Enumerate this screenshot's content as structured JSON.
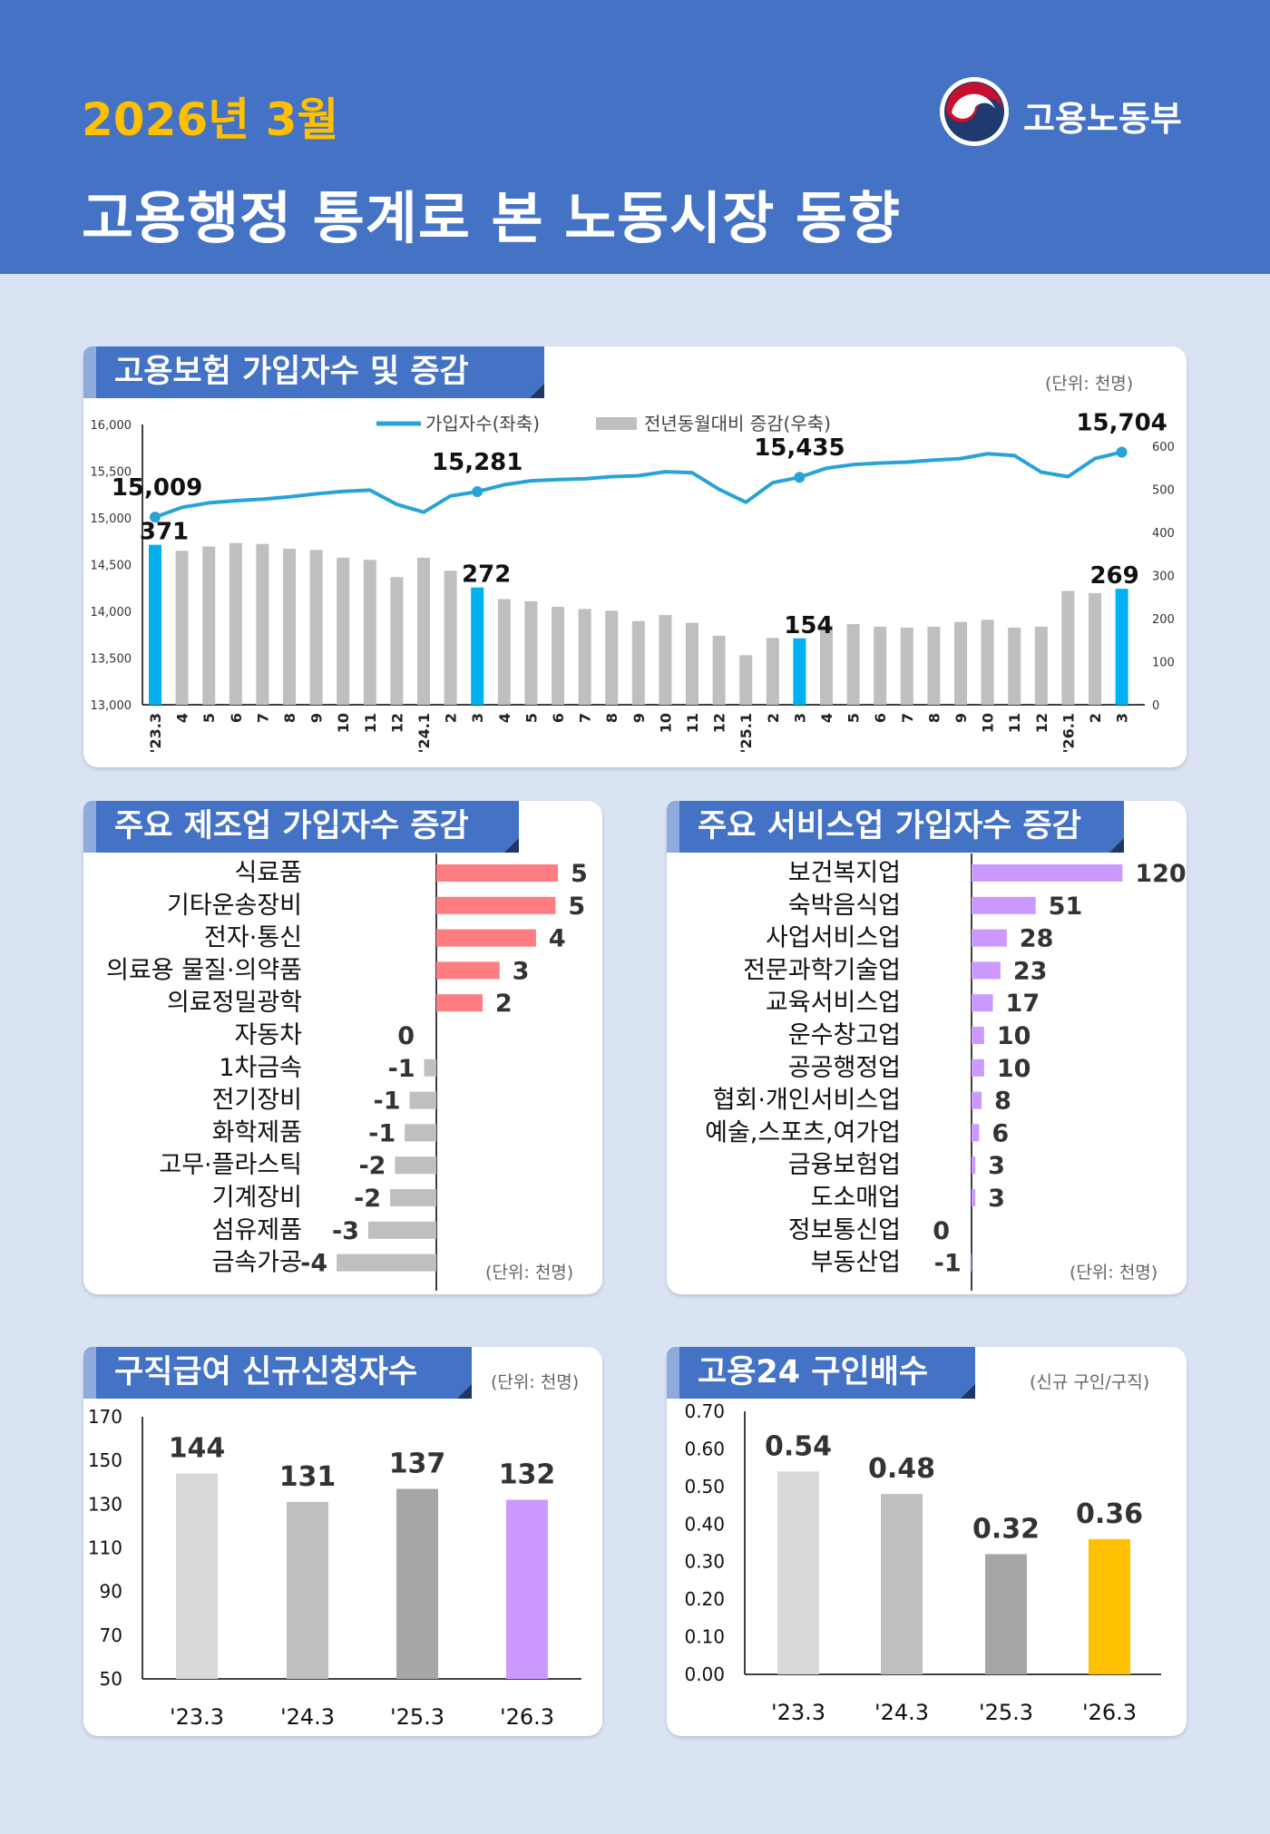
{
  "header": {
    "year": "2026년 3월",
    "title": "고용행정 통계로 본 노동시장 동향",
    "logo_text": "고용노동부"
  },
  "colors": {
    "header": "#4472c4",
    "year": "#ffc000",
    "highlight_bar": "#00b0f0",
    "gray_bar": "#bfbfbf",
    "line": "#29a3d6",
    "mfg_positive": "#ff7c80",
    "mfg_negative": "#bfbfbf",
    "service": "#cc99ff",
    "claims_2026": "#cc99ff",
    "ratio_2026": "#ffc000"
  },
  "chart_data": [
    {
      "type": "bar+line",
      "title": "고용보험 가입자수 및 증감",
      "unit": "(단위: 천명)",
      "legend": {
        "line": "가입자수(좌축)",
        "bar": "전년동월대비 증감(우축)",
        "placement": "top"
      },
      "categories": [
        "'23.3",
        "4",
        "5",
        "6",
        "7",
        "8",
        "9",
        "10",
        "11",
        "12",
        "'24.1",
        "2",
        "3",
        "4",
        "5",
        "6",
        "7",
        "8",
        "9",
        "10",
        "11",
        "12",
        "'25.1",
        "2",
        "3",
        "4",
        "5",
        "6",
        "7",
        "8",
        "9",
        "10",
        "11",
        "12",
        "'26.1",
        "2",
        "3"
      ],
      "left_axis": {
        "range": [
          13000,
          16000
        ],
        "ticks": [
          "13,000",
          "13,500",
          "14,000",
          "14,500",
          "15,000",
          "15,500",
          "16,000"
        ]
      },
      "right_axis": {
        "range": [
          0,
          650
        ],
        "ticks": [
          "0",
          "100",
          "200",
          "300",
          "400",
          "500",
          "600"
        ]
      },
      "series": [
        {
          "name": "가입자수(좌축)",
          "type": "line",
          "values": [
            15009,
            15113,
            15161,
            15184,
            15200,
            15226,
            15258,
            15284,
            15297,
            15145,
            15061,
            15235,
            15281,
            15355,
            15397,
            15410,
            15419,
            15442,
            15452,
            15494,
            15484,
            15306,
            15168,
            15377,
            15435,
            15532,
            15571,
            15587,
            15597,
            15619,
            15635,
            15687,
            15668,
            15490,
            15442,
            15635,
            15704
          ]
        },
        {
          "name": "전년동월대비 증감(우축)",
          "type": "bar",
          "values": [
            371,
            357,
            367,
            375,
            373,
            362,
            359,
            341,
            336,
            296,
            341,
            311,
            272,
            245,
            240,
            227,
            222,
            218,
            194,
            208,
            190,
            160,
            115,
            155,
            154,
            184,
            187,
            181,
            179,
            181,
            192,
            197,
            179,
            181,
            264,
            259,
            269
          ]
        }
      ],
      "highlighted": [
        0,
        12,
        24,
        36
      ],
      "line_labels": [
        "15,009",
        "15,281",
        "15,435",
        "15,704"
      ],
      "bar_labels": [
        "371",
        "272",
        "154",
        "269"
      ]
    },
    {
      "type": "bar",
      "orientation": "horizontal",
      "title": "주요 제조업 가입자수 증감",
      "unit": "(단위: 천명)",
      "categories": [
        "식료품",
        "기타운송장비",
        "전자·통신",
        "의료용 물질·의약품",
        "의료정밀광학",
        "자동차",
        "1차금속",
        "전기장비",
        "화학제품",
        "고무·플라스틱",
        "기계장비",
        "섬유제품",
        "금속가공"
      ],
      "values": [
        5.0,
        4.9,
        4.1,
        2.6,
        1.9,
        0,
        -0.5,
        -1.1,
        -1.3,
        -1.7,
        -1.9,
        -2.8,
        -4.1
      ],
      "labels": [
        "5",
        "5",
        "4",
        "3",
        "2",
        "0",
        "-1",
        "-1",
        "-1",
        "-2",
        "-2",
        "-3",
        "-4"
      ]
    },
    {
      "type": "bar",
      "orientation": "horizontal",
      "title": "주요 서비스업 가입자수 증감",
      "unit": "(단위: 천명)",
      "categories": [
        "보건복지업",
        "숙박음식업",
        "사업서비스업",
        "전문과학기술업",
        "교육서비스업",
        "운수창고업",
        "공공행정업",
        "협회·개인서비스업",
        "예술,스포츠,여가업",
        "금융보험업",
        "도소매업",
        "정보통신업",
        "부동산업"
      ],
      "values": [
        120,
        51,
        28,
        23,
        17,
        10,
        10,
        8,
        6,
        3,
        3,
        0,
        -1
      ],
      "labels": [
        "120",
        "51",
        "28",
        "23",
        "17",
        "10",
        "10",
        "8",
        "6",
        "3",
        "3",
        "0",
        "-1"
      ]
    },
    {
      "type": "bar",
      "title": "구직급여 신규신청자수",
      "unit": "(단위: 천명)",
      "categories": [
        "'23.3",
        "'24.3",
        "'25.3",
        "'26.3"
      ],
      "values": [
        144,
        131,
        137,
        132
      ],
      "ylim": [
        50,
        170
      ],
      "ticks": [
        "50",
        "70",
        "90",
        "110",
        "130",
        "150",
        "170"
      ],
      "bar_colors": [
        "#d9d9d9",
        "#bfbfbf",
        "#a6a6a6",
        "#cc99ff"
      ]
    },
    {
      "type": "bar",
      "title": "고용24 구인배수",
      "unit": "(신규 구인/구직)",
      "categories": [
        "'23.3",
        "'24.3",
        "'25.3",
        "'26.3"
      ],
      "values": [
        0.54,
        0.48,
        0.32,
        0.36
      ],
      "labels": [
        "0.54",
        "0.48",
        "0.32",
        "0.36"
      ],
      "ylim": [
        0,
        0.7
      ],
      "ticks": [
        "0.00",
        "0.10",
        "0.20",
        "0.30",
        "0.40",
        "0.50",
        "0.60",
        "0.70"
      ],
      "bar_colors": [
        "#d9d9d9",
        "#bfbfbf",
        "#a6a6a6",
        "#ffc000"
      ]
    }
  ]
}
